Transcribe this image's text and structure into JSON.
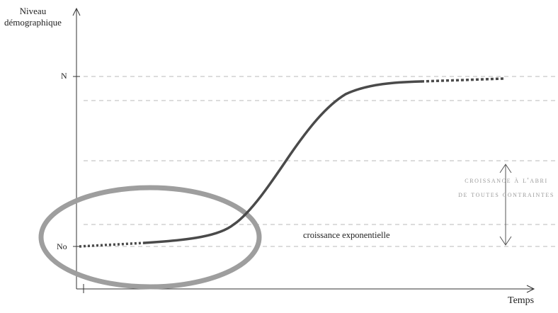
{
  "axes": {
    "y_label_line1": "Niveau",
    "y_label_line2": "démographique",
    "x_label": "Temps"
  },
  "levels": {
    "max_label": "N",
    "start_label": "No"
  },
  "annotations": {
    "exponential_growth": "croissance exponentielle",
    "sheltered_growth_line1": "croissance à l'abri",
    "sheltered_growth_line2": "de toutes contraintes"
  },
  "colors": {
    "curve": "#4a4a4a",
    "ellipse": "#9e9e9e",
    "guides": "#b8b8b8",
    "axes": "#333333",
    "annotation_muted": "#9a9a9a"
  }
}
